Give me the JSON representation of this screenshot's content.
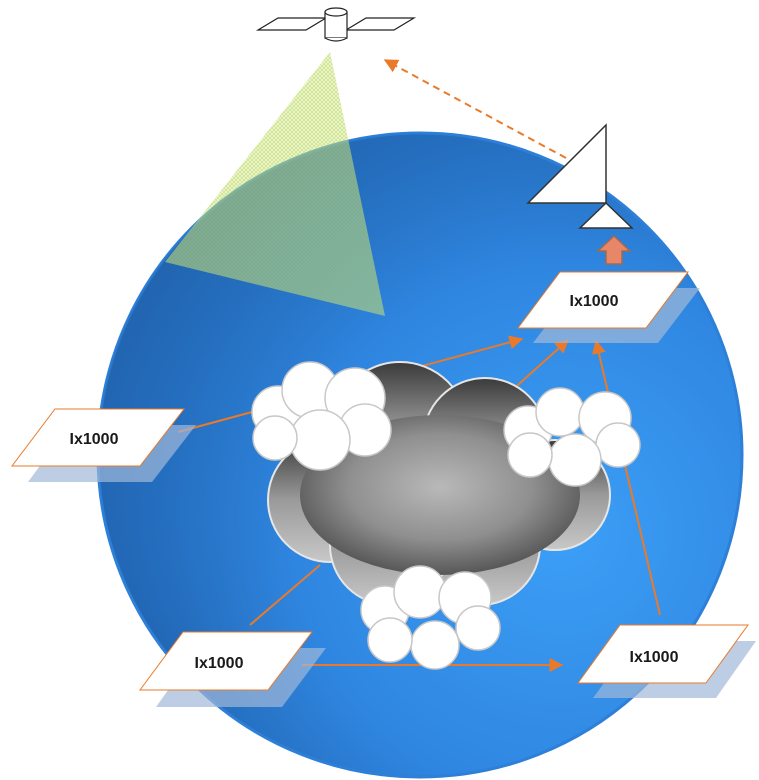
{
  "diagram": {
    "nodes": [
      {
        "id": "top-right",
        "label": "Ix1000"
      },
      {
        "id": "left",
        "label": "Ix1000"
      },
      {
        "id": "bottom-left",
        "label": "Ix1000"
      },
      {
        "id": "bottom-right",
        "label": "Ix1000"
      }
    ],
    "colors": {
      "globe_light": "#3b9cf5",
      "globe_dark": "#1e5fa8",
      "link": "#ea7a2a",
      "uplink": "#ea7a2a",
      "beam": "#c7e36a"
    }
  }
}
